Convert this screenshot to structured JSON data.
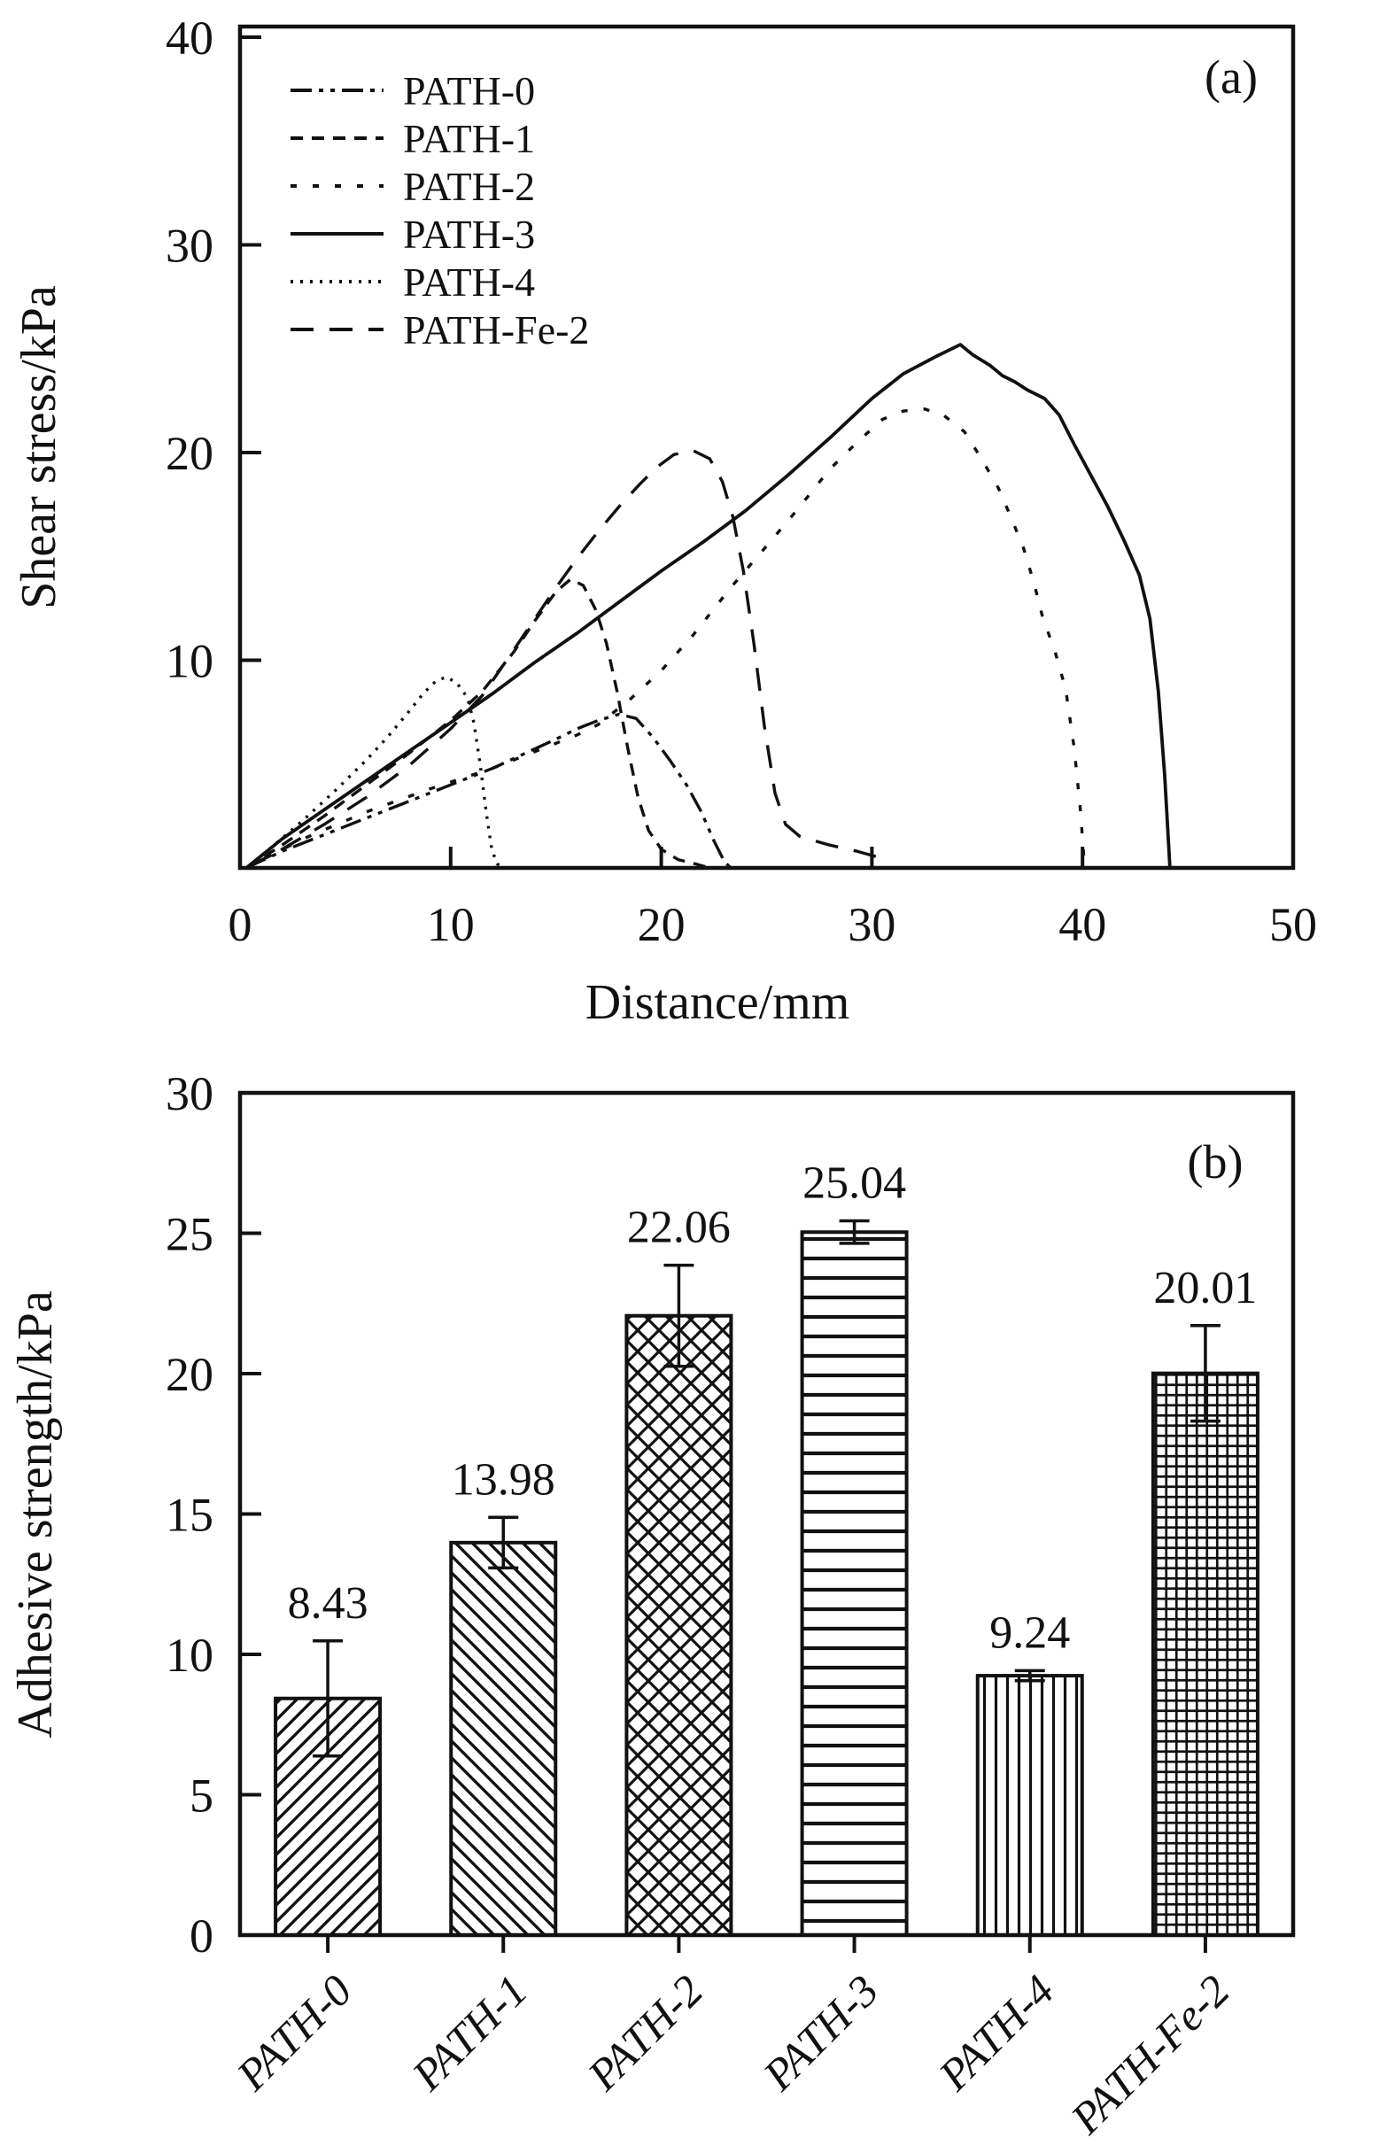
{
  "figure": {
    "panel_a_tag": "(a)",
    "panel_b_tag": "(b)"
  },
  "chart_data": [
    {
      "type": "line",
      "title": "",
      "xlabel": "Distance/mm",
      "ylabel": "Shear stress/kPa",
      "xlim": [
        0,
        50
      ],
      "ylim": [
        0,
        40
      ],
      "xticks": [
        0,
        10,
        20,
        30,
        40,
        50
      ],
      "yticks": [
        10,
        20,
        30,
        40
      ],
      "grid": false,
      "legend_position": "upper-left",
      "series": [
        {
          "name": "PATH-0",
          "dash": [
            24,
            8,
            5,
            8,
            5,
            8
          ],
          "points": [
            [
              0.3,
              0
            ],
            [
              2,
              0.8
            ],
            [
              4,
              1.6
            ],
            [
              6,
              2.4
            ],
            [
              8,
              3.2
            ],
            [
              10,
              4.0
            ],
            [
              12,
              4.8
            ],
            [
              13.5,
              5.5
            ],
            [
              15,
              6.2
            ],
            [
              16,
              6.7
            ],
            [
              17,
              7.1
            ],
            [
              18,
              7.4
            ],
            [
              18.8,
              7.2
            ],
            [
              19.6,
              6.3
            ],
            [
              20.4,
              5.2
            ],
            [
              21.2,
              4.0
            ],
            [
              21.9,
              2.7
            ],
            [
              22.5,
              1.3
            ],
            [
              23,
              0.3
            ],
            [
              23.3,
              0
            ]
          ]
        },
        {
          "name": "PATH-1",
          "dash": [
            14,
            10
          ],
          "points": [
            [
              0.3,
              0
            ],
            [
              2,
              1.1
            ],
            [
              4,
              2.5
            ],
            [
              6,
              4.0
            ],
            [
              8,
              5.5
            ],
            [
              10,
              7.1
            ],
            [
              11.5,
              8.5
            ],
            [
              13,
              10.4
            ],
            [
              14,
              11.9
            ],
            [
              15,
              13.3
            ],
            [
              15.7,
              13.9
            ],
            [
              16.3,
              13.6
            ],
            [
              16.9,
              12.4
            ],
            [
              17.4,
              10.8
            ],
            [
              17.9,
              8.5
            ],
            [
              18.4,
              5.8
            ],
            [
              18.9,
              3.4
            ],
            [
              19.4,
              1.8
            ],
            [
              20,
              0.9
            ],
            [
              20.8,
              0.4
            ],
            [
              21.6,
              0.2
            ],
            [
              22.3,
              0
            ]
          ]
        },
        {
          "name": "PATH-2",
          "dash": [
            7,
            18
          ],
          "points": [
            [
              0.3,
              0
            ],
            [
              3,
              1.4
            ],
            [
              6,
              2.7
            ],
            [
              9,
              3.8
            ],
            [
              12,
              4.8
            ],
            [
              14,
              5.6
            ],
            [
              16,
              6.4
            ],
            [
              17,
              6.9
            ],
            [
              18.5,
              8.1
            ],
            [
              20,
              9.5
            ],
            [
              21.5,
              11.2
            ],
            [
              23.3,
              13.5
            ],
            [
              25,
              15.5
            ],
            [
              26.5,
              17.3
            ],
            [
              28,
              19.2
            ],
            [
              29.3,
              20.5
            ],
            [
              30.5,
              21.6
            ],
            [
              31.5,
              22.0
            ],
            [
              32.5,
              22.1
            ],
            [
              33.4,
              21.8
            ],
            [
              34.4,
              21.0
            ],
            [
              35.2,
              19.7
            ],
            [
              36,
              18.3
            ],
            [
              36.6,
              16.9
            ],
            [
              37.2,
              15.4
            ],
            [
              37.7,
              13.7
            ],
            [
              38.1,
              12.1
            ],
            [
              38.7,
              10.4
            ],
            [
              39.2,
              8.6
            ],
            [
              39.6,
              5.8
            ],
            [
              39.9,
              2.8
            ],
            [
              40.1,
              0
            ]
          ]
        },
        {
          "name": "PATH-3",
          "dash": [],
          "points": [
            [
              0.3,
              0
            ],
            [
              2,
              1.4
            ],
            [
              4,
              2.8
            ],
            [
              6,
              4.2
            ],
            [
              8,
              5.6
            ],
            [
              10,
              7.0
            ],
            [
              12,
              8.4
            ],
            [
              14,
              9.9
            ],
            [
              16,
              11.3
            ],
            [
              18,
              12.8
            ],
            [
              20,
              14.3
            ],
            [
              22,
              15.7
            ],
            [
              24,
              17.2
            ],
            [
              26,
              18.9
            ],
            [
              28,
              20.7
            ],
            [
              30,
              22.6
            ],
            [
              31.5,
              23.8
            ],
            [
              33,
              24.6
            ],
            [
              34.2,
              25.2
            ],
            [
              34.8,
              24.7
            ],
            [
              35.6,
              24.2
            ],
            [
              36.2,
              23.7
            ],
            [
              36.8,
              23.4
            ],
            [
              37.4,
              23.0
            ],
            [
              38.2,
              22.6
            ],
            [
              38.9,
              21.8
            ],
            [
              39.6,
              20.4
            ],
            [
              40.4,
              18.9
            ],
            [
              41.2,
              17.4
            ],
            [
              42,
              15.7
            ],
            [
              42.7,
              14.1
            ],
            [
              43.2,
              12.0
            ],
            [
              43.6,
              8.5
            ],
            [
              43.9,
              4.5
            ],
            [
              44.15,
              0
            ]
          ]
        },
        {
          "name": "PATH-4",
          "dash": [
            3,
            8
          ],
          "points": [
            [
              0.3,
              0
            ],
            [
              1.5,
              1.0
            ],
            [
              3,
              2.3
            ],
            [
              4.5,
              3.7
            ],
            [
              6,
              5.2
            ],
            [
              7,
              6.3
            ],
            [
              8,
              7.5
            ],
            [
              8.7,
              8.4
            ],
            [
              9.3,
              9.0
            ],
            [
              9.8,
              9.2
            ],
            [
              10.3,
              8.9
            ],
            [
              10.8,
              8.2
            ],
            [
              11.1,
              7.0
            ],
            [
              11.4,
              5.0
            ],
            [
              11.7,
              2.6
            ],
            [
              11.95,
              0.9
            ],
            [
              12.2,
              0.2
            ],
            [
              12.5,
              0
            ]
          ]
        },
        {
          "name": "PATH-Fe-2",
          "dash": [
            26,
            18
          ],
          "points": [
            [
              0.3,
              0
            ],
            [
              2,
              0.9
            ],
            [
              4,
              2.1
            ],
            [
              6,
              3.4
            ],
            [
              8,
              4.9
            ],
            [
              10,
              6.7
            ],
            [
              11.5,
              8.3
            ],
            [
              13,
              10.5
            ],
            [
              14,
              12.0
            ],
            [
              15,
              13.5
            ],
            [
              16,
              14.9
            ],
            [
              17,
              16.2
            ],
            [
              18,
              17.4
            ],
            [
              19,
              18.5
            ],
            [
              19.8,
              19.3
            ],
            [
              20.6,
              19.9
            ],
            [
              21.5,
              20.1
            ],
            [
              22.3,
              19.7
            ],
            [
              22.9,
              18.6
            ],
            [
              23.4,
              16.9
            ],
            [
              23.9,
              14.3
            ],
            [
              24.4,
              10.8
            ],
            [
              24.9,
              6.8
            ],
            [
              25.4,
              3.6
            ],
            [
              25.9,
              2.1
            ],
            [
              26.6,
              1.5
            ],
            [
              28,
              1.1
            ],
            [
              29.3,
              0.8
            ],
            [
              30.7,
              0.4
            ]
          ]
        }
      ]
    },
    {
      "type": "bar",
      "title": "",
      "xlabel": "",
      "ylabel": "Adhesive strength/kPa",
      "ylim": [
        0,
        30
      ],
      "yticks": [
        0,
        5,
        10,
        15,
        20,
        25,
        30
      ],
      "grid": false,
      "categories": [
        "PATH-0",
        "PATH-1",
        "PATH-2",
        "PATH-3",
        "PATH-4",
        "PATH-Fe-2"
      ],
      "values": [
        8.43,
        13.98,
        22.06,
        25.04,
        9.24,
        20.01
      ],
      "value_labels": [
        "8.43",
        "13.98",
        "22.06",
        "25.04",
        "9.24",
        "20.01"
      ],
      "errors": [
        2.05,
        0.9,
        1.8,
        0.4,
        0.18,
        1.7
      ],
      "hatches": [
        "diag-forward",
        "diag-back",
        "cross-diagonal",
        "horizontal",
        "vertical",
        "grid"
      ]
    }
  ],
  "style": {
    "ink_color": "#111111",
    "background": "#ffffff"
  }
}
